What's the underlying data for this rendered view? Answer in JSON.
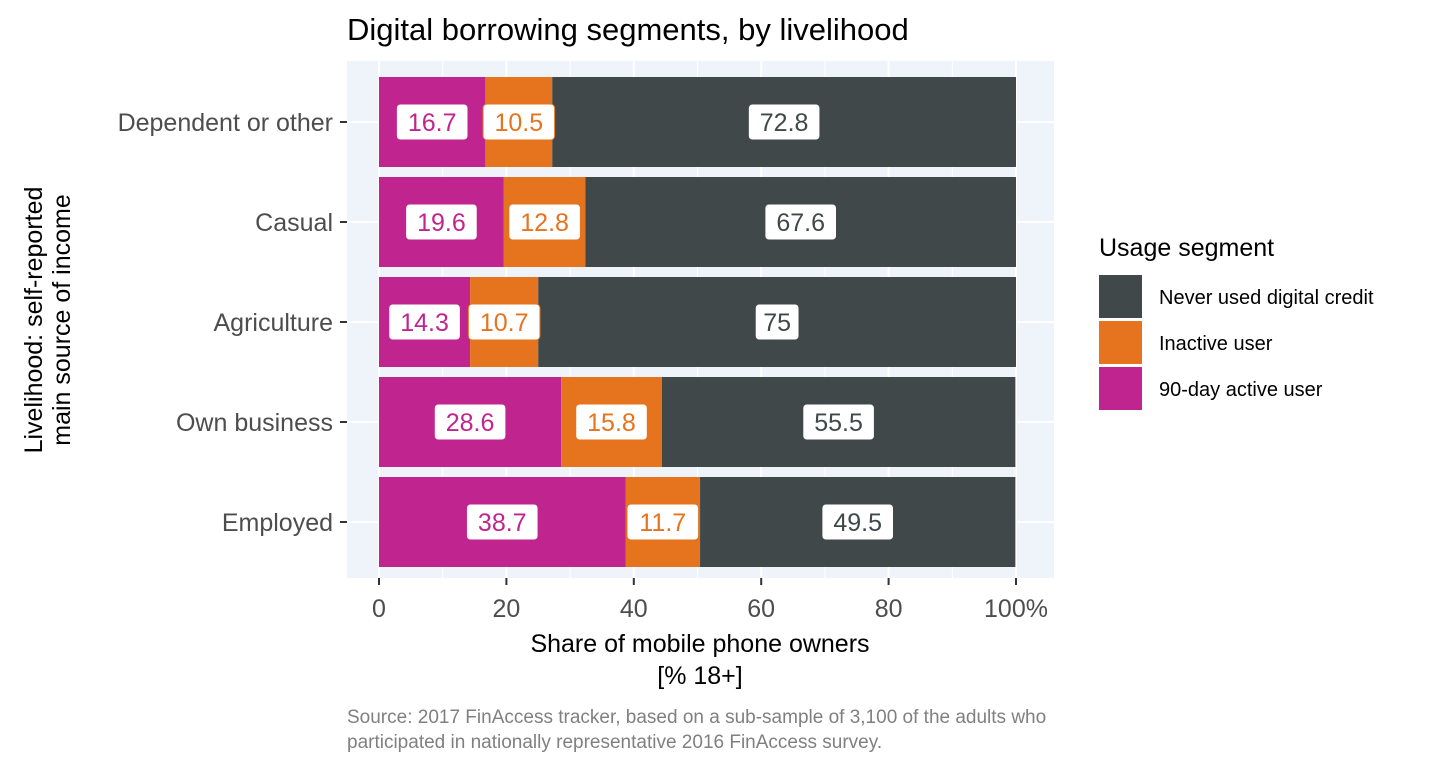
{
  "chart_data": {
    "type": "bar",
    "orientation": "horizontal",
    "stacked": true,
    "title": "Digital borrowing segments, by livelihood",
    "xlabel_line1": "Share of mobile phone owners",
    "xlabel_line2": "[% 18+]",
    "ylabel_line1": "Livelihood: self-reported",
    "ylabel_line2": "main source of income",
    "xlim": [
      0,
      100
    ],
    "xticks": [
      "0",
      "20",
      "40",
      "60",
      "80",
      "100%"
    ],
    "xtick_values": [
      0,
      20,
      40,
      60,
      80,
      100
    ],
    "categories": [
      "Dependent or other",
      "Casual",
      "Agriculture",
      "Own business",
      "Employed"
    ],
    "series": [
      {
        "name": "90-day active user",
        "color": "#c0258f",
        "values": [
          16.7,
          19.6,
          14.3,
          28.6,
          38.7
        ],
        "labels": [
          "16.7",
          "19.6",
          "14.3",
          "28.6",
          "38.7"
        ]
      },
      {
        "name": "Inactive user",
        "color": "#e6731e",
        "values": [
          10.5,
          12.8,
          10.7,
          15.8,
          11.7
        ],
        "labels": [
          "10.5",
          "12.8",
          "10.7",
          "15.8",
          "11.7"
        ]
      },
      {
        "name": "Never used digital credit",
        "color": "#404849",
        "values": [
          72.8,
          67.6,
          75,
          55.5,
          49.5
        ],
        "labels": [
          "72.8",
          "67.6",
          "75",
          "55.5",
          "49.5"
        ]
      }
    ],
    "legend": {
      "title": "Usage segment",
      "position": "right",
      "items": [
        "Never used digital credit",
        "Inactive user",
        "90-day active user"
      ]
    },
    "caption_line1": "Source: 2017 FinAccess tracker, based on a sub-sample of 3,100 of the adults who",
    "caption_line2": "participated in nationally representative 2016 FinAccess survey.",
    "panel_background": "#eff3fa",
    "grid": true
  }
}
